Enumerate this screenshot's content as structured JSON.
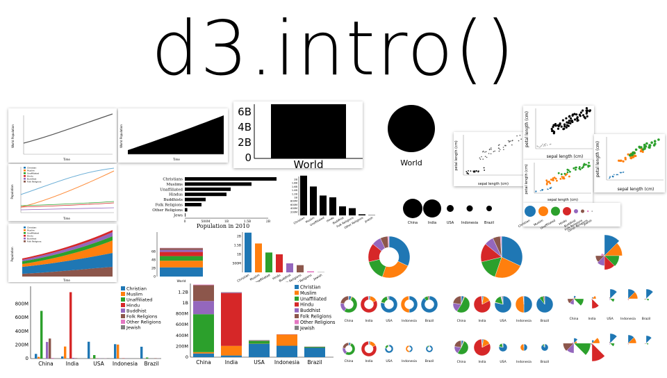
{
  "page": {
    "title": "d3.intro()"
  },
  "colors": {
    "christian": "#1f77b4",
    "muslim": "#ff7f0e",
    "unaffiliated": "#2ca02c",
    "hindu": "#d62728",
    "buddhist": "#9467bd",
    "folk": "#8c564b",
    "other": "#e377c2",
    "jewish": "#7f7f7f"
  },
  "big_bar": {
    "ticks": [
      "0",
      "2B",
      "4B",
      "6B"
    ],
    "label": "World"
  },
  "big_circle": {
    "label": "World"
  },
  "hbar": {
    "categories": [
      "Christians",
      "Muslims",
      "Unaffiliated",
      "Hindus",
      "Buddhists",
      "Folk Religions",
      "Other Religions",
      "Jews"
    ],
    "ticks": [
      "0",
      "500M",
      "1B",
      "1.5B",
      "2B"
    ],
    "caption": "Population in 2010"
  },
  "vbar": {
    "categories": [
      "Christian",
      "Muslim",
      "Unaffiliated",
      "Hindu",
      "Buddhist",
      "Folk Religions",
      "Other Religions",
      "Jewish"
    ],
    "ticks": [
      "200M",
      "400M",
      "600M",
      "800M",
      "1B",
      "1.2B",
      "1.4B",
      "1.6B",
      "1.8B",
      "2B"
    ]
  },
  "circles_row": {
    "countries": [
      "China",
      "India",
      "USA",
      "Indonesia",
      "Brazil"
    ]
  },
  "legend_small": [
    "Christian",
    "Muslim",
    "Unaffiliated",
    "Hindu",
    "Buddhist",
    "Folk Religions",
    "Other Religions",
    "Jewish"
  ],
  "color_bar": {
    "categories": [
      "Christian",
      "Muslim",
      "Unaffiliated",
      "Hindu",
      "Buddhist",
      "Folk Religions",
      "Other Religions",
      "Jewish"
    ],
    "ticks": [
      "500M",
      "1B",
      "1.5B",
      "2B"
    ]
  },
  "stack_small": {
    "ticks": [
      "0",
      "2B",
      "4B",
      "6B"
    ],
    "label": "World"
  },
  "grouped": {
    "countries": [
      "China",
      "India",
      "USA",
      "Indonesia",
      "Brazil"
    ],
    "ticks": [
      "0",
      "200M",
      "400M",
      "600M",
      "800M"
    ],
    "legend": [
      "Christian",
      "Muslim",
      "Unaffiliated",
      "Hindu",
      "Buddhist",
      "Folk Religions",
      "Other Religions",
      "Jewish"
    ]
  },
  "stacked": {
    "countries": [
      "China",
      "India",
      "USA",
      "Indonesia",
      "Brazil"
    ],
    "ticks": [
      "0",
      "200M",
      "400M",
      "600M",
      "800M",
      "1B",
      "1.2B"
    ],
    "legend": [
      "Christian",
      "Muslim",
      "Unaffiliated",
      "Hindu",
      "Buddhist",
      "Folk Religions",
      "Other Religions",
      "Jewish"
    ]
  },
  "donut_rows": {
    "countries": [
      "China",
      "India",
      "USA",
      "Indonesia",
      "Brazil"
    ]
  },
  "scatter": {
    "xlabel": "sepal length (cm)",
    "ylabel": "petal length (cm)",
    "ticks": [
      "4.5",
      "5.0",
      "5.5",
      "6.0",
      "6.5",
      "7.0",
      "7.5"
    ]
  },
  "line_small": {
    "xlabel": "Time",
    "ylabel": "World Population"
  },
  "multi_line": {
    "xlabel": "Time",
    "ylabel": "Population"
  },
  "stream": {
    "xlabel": "Time",
    "ylabel": "Population"
  }
}
